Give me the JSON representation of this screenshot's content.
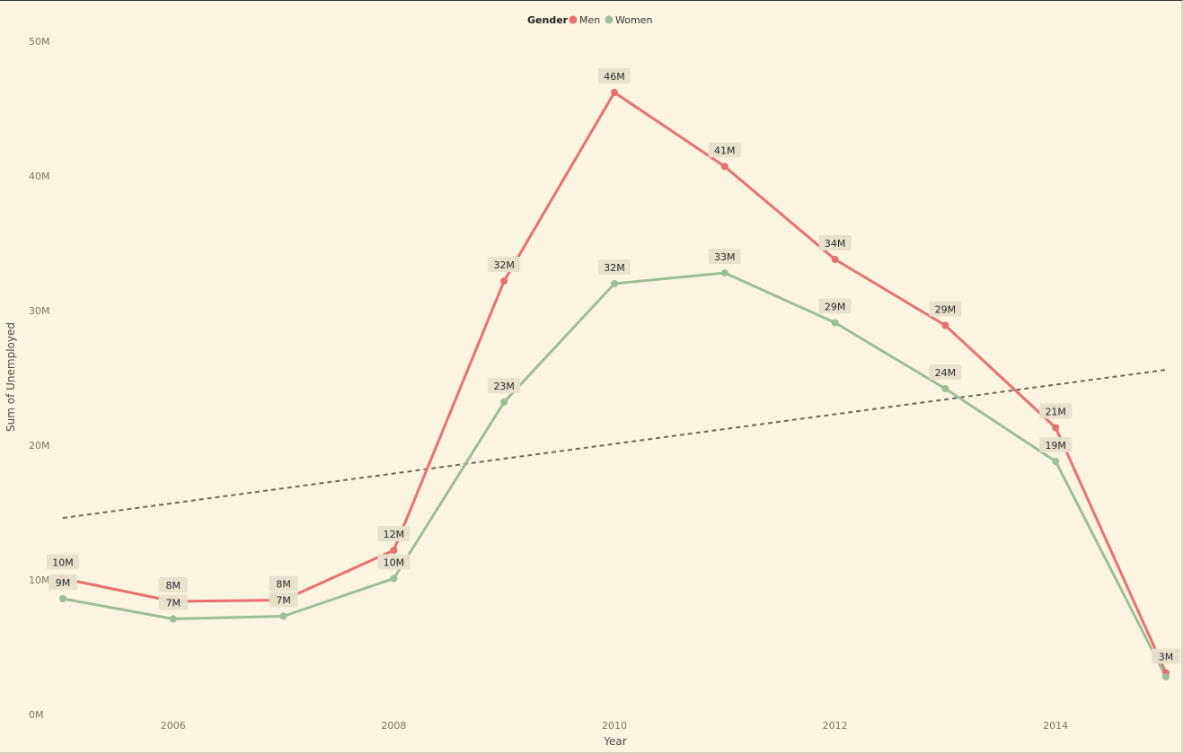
{
  "chart_data": {
    "type": "line",
    "xlabel": "Year",
    "ylabel": "Sum of Unemployed",
    "legend": {
      "title": "Gender",
      "position": "top-center"
    },
    "x": [
      2005,
      2006,
      2007,
      2008,
      2009,
      2010,
      2011,
      2012,
      2013,
      2014,
      2015
    ],
    "x_ticks": [
      2006,
      2008,
      2010,
      2012,
      2014
    ],
    "ylim": [
      0,
      50
    ],
    "y_ticks": [
      {
        "value": 0,
        "label": "0M"
      },
      {
        "value": 10,
        "label": "10M"
      },
      {
        "value": 20,
        "label": "20M"
      },
      {
        "value": 30,
        "label": "30M"
      },
      {
        "value": 40,
        "label": "40M"
      },
      {
        "value": 50,
        "label": "50M"
      }
    ],
    "series": [
      {
        "name": "Men",
        "color": "#e8706e",
        "values": [
          10.1,
          8.4,
          8.5,
          12.2,
          32.2,
          46.2,
          40.7,
          33.8,
          28.9,
          21.3,
          3.1
        ],
        "labels": [
          "10M",
          "8M",
          "8M",
          "12M",
          "32M",
          "46M",
          "41M",
          "34M",
          "29M",
          "21M",
          "3M"
        ]
      },
      {
        "name": "Women",
        "color": "#9cbf98",
        "values": [
          8.6,
          7.1,
          7.3,
          10.1,
          23.2,
          32.0,
          32.8,
          29.1,
          24.2,
          18.8,
          2.8
        ],
        "labels": [
          "9M",
          "7M",
          "7M",
          "10M",
          "23M",
          "32M",
          "33M",
          "29M",
          "24M",
          "19M",
          ""
        ]
      }
    ],
    "trendline": {
      "style": "dashed",
      "color": "#6b6b5e",
      "y_start": 14.6,
      "y_end": 25.6
    },
    "grid": false
  }
}
